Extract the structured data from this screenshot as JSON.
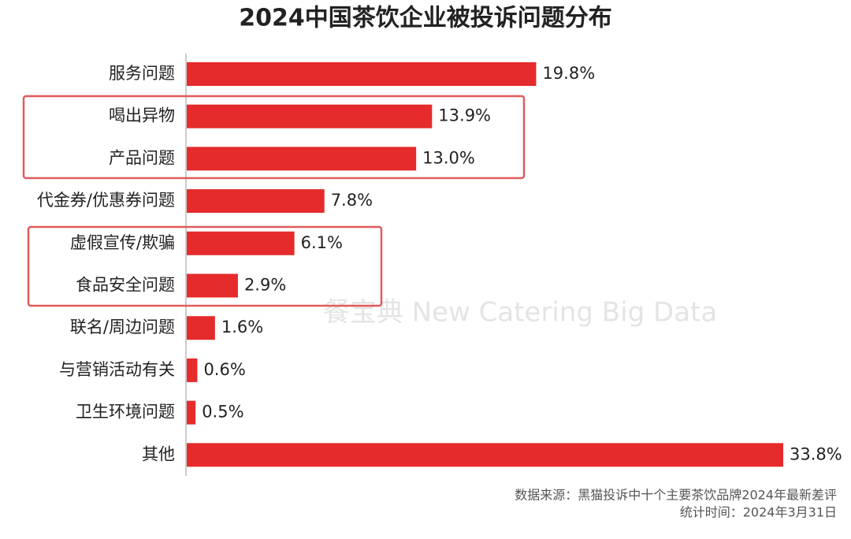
{
  "chart_data": {
    "type": "bar",
    "orientation": "horizontal",
    "title": "2024中国茶饮企业被投诉问题分布",
    "categories": [
      "服务问题",
      "喝出异物",
      "产品问题",
      "代金券/优惠券问题",
      "虚假宣传/欺骗",
      "食品安全问题",
      "联名/周边问题",
      "与营销活动有关",
      "卫生环境问题",
      "其他"
    ],
    "values": [
      19.8,
      13.9,
      13.0,
      7.8,
      6.1,
      2.9,
      1.6,
      0.6,
      0.5,
      33.8
    ],
    "value_labels": [
      "19.8%",
      "13.9%",
      "13.0%",
      "7.8%",
      "6.1%",
      "2.9%",
      "1.6%",
      "0.6%",
      "0.5%",
      "33.8%"
    ],
    "color": "#e52b2b",
    "watermark": "餐宝典  New Catering Big Data",
    "source": "数据来源：黑猫投诉中十个主要茶饮品牌2024年最新差评",
    "stat_time": "统计时间：2024年3月31日"
  }
}
